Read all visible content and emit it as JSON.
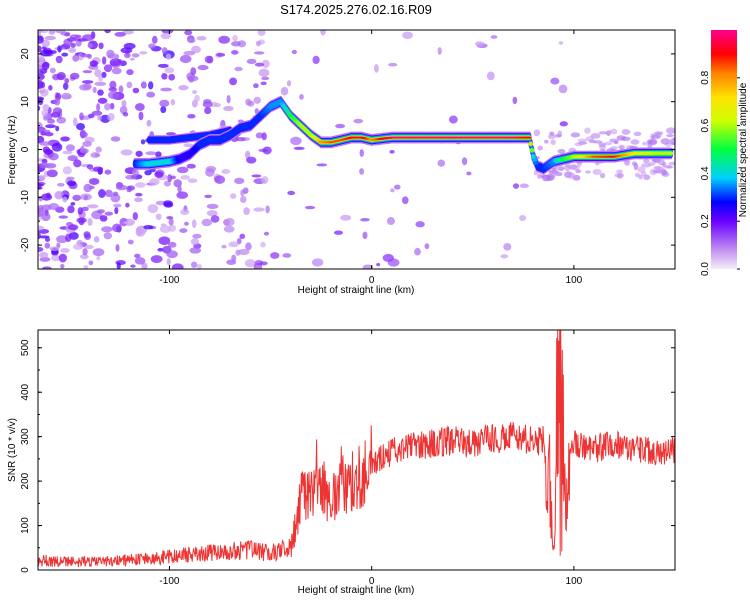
{
  "chart_data": [
    {
      "type": "heatmap",
      "title": "S174.2025.276.02.16.R09",
      "xlabel": "Height of straight line (km)",
      "ylabel": "Frequency (Hz)",
      "xlim": [
        -165,
        150
      ],
      "ylim": [
        -25,
        25
      ],
      "xticks": [
        -100,
        0,
        100
      ],
      "yticks": [
        -20,
        -10,
        0,
        10,
        20
      ],
      "colorbar": {
        "label": "Normalized spectral amplitude",
        "range": [
          0,
          1
        ],
        "ticks": [
          "0.0",
          "0.2",
          "0.4",
          "0.6",
          "0.8"
        ],
        "tick_values": [
          0,
          0.2,
          0.4,
          0.6,
          0.8
        ]
      },
      "ridge": {
        "x": [
          -117,
          -110,
          -100,
          -95,
          -90,
          -85,
          -80,
          -75,
          -70,
          -65,
          -60,
          -55,
          -50,
          -45,
          -40,
          -35,
          -30,
          -25,
          -20,
          -15,
          -10,
          -5,
          0,
          10,
          20,
          30,
          40,
          50,
          60,
          70,
          78,
          80,
          82,
          85,
          90,
          95,
          100,
          110,
          120,
          130,
          140,
          148
        ],
        "freq": [
          -3,
          -3,
          -2.5,
          -2,
          -1,
          1,
          2,
          2,
          3,
          4.5,
          5,
          7,
          9,
          10,
          7,
          5,
          3,
          1.5,
          1.5,
          2,
          2.5,
          2.5,
          2,
          2.5,
          2.5,
          2.5,
          2.5,
          2.5,
          2.5,
          2.5,
          2.5,
          -1.5,
          -3.5,
          -4,
          -2.5,
          -2,
          -1.5,
          -1.5,
          -1.5,
          -0.8,
          -0.8,
          -0.8
        ],
        "amplitude": [
          0.3,
          0.4,
          0.4,
          0.25,
          0.25,
          0.3,
          0.3,
          0.3,
          0.3,
          0.3,
          0.3,
          0.3,
          0.35,
          0.35,
          0.5,
          0.6,
          0.6,
          0.8,
          0.85,
          0.85,
          0.9,
          0.95,
          0.8,
          1.0,
          1.0,
          1.0,
          1.0,
          1.0,
          1.0,
          1.0,
          0.9,
          0.4,
          0.3,
          0.3,
          0.35,
          0.5,
          0.6,
          0.85,
          0.9,
          0.7,
          0.6,
          0.6
        ]
      },
      "secondary_ridge": {
        "x": [
          -110,
          -100,
          -90,
          -80,
          -70
        ],
        "freq": [
          2,
          2,
          2.5,
          3,
          4
        ],
        "amplitude": [
          0.3,
          0.3,
          0.3,
          0.3,
          0.3
        ]
      }
    },
    {
      "type": "line",
      "xlabel": "Height of straight line (km)",
      "ylabel": "SNR (10 * v/v)",
      "xlim": [
        -165,
        150
      ],
      "ylim": [
        0,
        540
      ],
      "xticks": [
        -100,
        0,
        100
      ],
      "yticks": [
        0,
        100,
        200,
        300,
        400,
        500
      ],
      "color": "#ee3333",
      "series": [
        {
          "name": "SNR",
          "x": [
            -165,
            -150,
            -130,
            -110,
            -90,
            -75,
            -60,
            -50,
            -40,
            -38,
            -35,
            -30,
            -20,
            -10,
            0,
            10,
            20,
            30,
            40,
            50,
            60,
            70,
            80,
            85,
            88,
            90,
            92,
            94,
            96,
            98,
            100,
            110,
            120,
            130,
            140,
            150
          ],
          "values": [
            22,
            18,
            20,
            25,
            35,
            40,
            45,
            38,
            50,
            90,
            160,
            190,
            170,
            200,
            240,
            265,
            280,
            285,
            290,
            285,
            295,
            300,
            290,
            290,
            200,
            40,
            440,
            510,
            150,
            280,
            285,
            270,
            285,
            275,
            265,
            270
          ]
        }
      ]
    }
  ]
}
